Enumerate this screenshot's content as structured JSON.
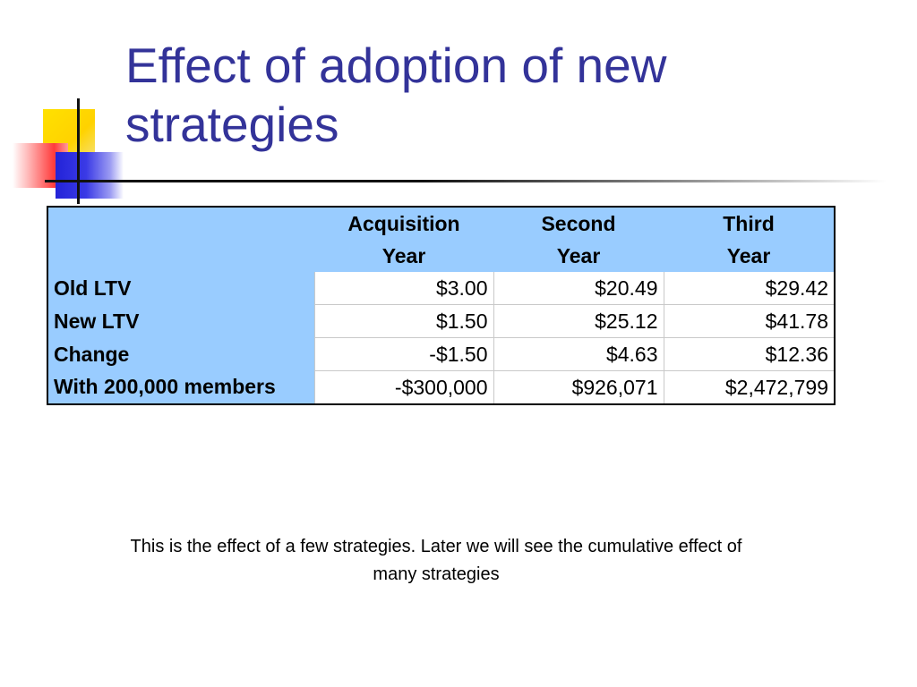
{
  "slide": {
    "title": "Effect of adoption of new strategies",
    "caption": "This is the effect of a few strategies. Later we will see the cumulative effect of many strategies"
  },
  "table": {
    "columns": [
      {
        "line1": "Acquisition",
        "line2": "Year"
      },
      {
        "line1": "Second",
        "line2": "Year"
      },
      {
        "line1": "Third",
        "line2": "Year"
      }
    ],
    "rows": [
      {
        "label": "Old LTV",
        "values": [
          "$3.00",
          "$20.49",
          "$29.42"
        ]
      },
      {
        "label": "New LTV",
        "values": [
          "$1.50",
          "$25.12",
          "$41.78"
        ]
      },
      {
        "label": "Change",
        "values": [
          "-$1.50",
          "$4.63",
          "$12.36"
        ]
      },
      {
        "label": "With 200,000 members",
        "values": [
          "-$300,000",
          "$926,071",
          "$2,472,799"
        ]
      }
    ]
  },
  "colors": {
    "title": "#333399",
    "header_fill": "#99ccff",
    "accent_yellow": "#ffd200",
    "accent_red": "#ff3b3b",
    "accent_blue": "#2323d8"
  }
}
